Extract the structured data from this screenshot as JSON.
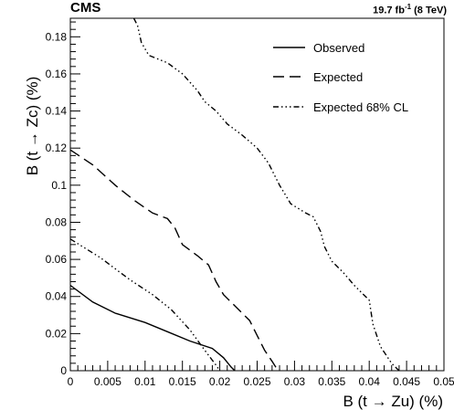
{
  "header": {
    "experiment": "CMS",
    "lumi_value": "19.7 fb",
    "lumi_exp": "-1",
    "energy": " (8 TeV)"
  },
  "chart_data": {
    "type": "line",
    "title": "",
    "xlabel": "B (t → Zu) (%)",
    "ylabel": "B (t → Zc) (%)",
    "xlim": [
      0,
      0.05
    ],
    "ylim": [
      0,
      0.19
    ],
    "xticks": [
      "0",
      "0.005",
      "0.01",
      "0.015",
      "0.02",
      "0.025",
      "0.03",
      "0.035",
      "0.04",
      "0.045",
      "0.05"
    ],
    "yticks": [
      "0",
      "0.02",
      "0.04",
      "0.06",
      "0.08",
      "0.1",
      "0.12",
      "0.14",
      "0.16",
      "0.18"
    ],
    "grid": false,
    "legend_position": "top-right",
    "series": [
      {
        "name": "Observed",
        "style": "solid",
        "points": [
          [
            0,
            0.046
          ],
          [
            0.003,
            0.037
          ],
          [
            0.006,
            0.031
          ],
          [
            0.01,
            0.026
          ],
          [
            0.013,
            0.021
          ],
          [
            0.016,
            0.016
          ],
          [
            0.019,
            0.012
          ],
          [
            0.0205,
            0.007
          ],
          [
            0.0215,
            0.002
          ],
          [
            0.022,
            0
          ]
        ]
      },
      {
        "name": "Expected",
        "style": "dashed",
        "points": [
          [
            0,
            0.119
          ],
          [
            0.003,
            0.111
          ],
          [
            0.006,
            0.1
          ],
          [
            0.0085,
            0.092
          ],
          [
            0.011,
            0.085
          ],
          [
            0.013,
            0.082
          ],
          [
            0.014,
            0.077
          ],
          [
            0.015,
            0.068
          ],
          [
            0.017,
            0.062
          ],
          [
            0.0185,
            0.057
          ],
          [
            0.0195,
            0.048
          ],
          [
            0.0205,
            0.041
          ],
          [
            0.022,
            0.035
          ],
          [
            0.024,
            0.027
          ],
          [
            0.025,
            0.019
          ],
          [
            0.026,
            0.011
          ],
          [
            0.027,
            0.005
          ],
          [
            0.0278,
            0
          ]
        ]
      },
      {
        "name": "Expected 68% CL",
        "style": "dashdot",
        "segments": [
          [
            [
              0,
              0.071
            ],
            [
              0.004,
              0.061
            ],
            [
              0.008,
              0.049
            ],
            [
              0.011,
              0.041
            ],
            [
              0.0135,
              0.033
            ],
            [
              0.016,
              0.022
            ],
            [
              0.018,
              0.011
            ],
            [
              0.0195,
              0.003
            ],
            [
              0.02,
              0
            ]
          ],
          [
            [
              0.0085,
              0.19
            ],
            [
              0.009,
              0.186
            ],
            [
              0.0095,
              0.177
            ],
            [
              0.0105,
              0.17
            ],
            [
              0.013,
              0.166
            ],
            [
              0.015,
              0.16
            ],
            [
              0.017,
              0.151
            ],
            [
              0.018,
              0.145
            ],
            [
              0.0195,
              0.14
            ],
            [
              0.021,
              0.133
            ],
            [
              0.023,
              0.127
            ],
            [
              0.025,
              0.12
            ],
            [
              0.0265,
              0.112
            ],
            [
              0.028,
              0.1
            ],
            [
              0.0295,
              0.09
            ],
            [
              0.0315,
              0.085
            ],
            [
              0.0325,
              0.083
            ],
            [
              0.0335,
              0.075
            ],
            [
              0.034,
              0.067
            ],
            [
              0.035,
              0.059
            ],
            [
              0.0365,
              0.053
            ],
            [
              0.038,
              0.046
            ],
            [
              0.039,
              0.042
            ],
            [
              0.04,
              0.038
            ],
            [
              0.0403,
              0.03
            ],
            [
              0.0405,
              0.025
            ],
            [
              0.0415,
              0.013
            ],
            [
              0.043,
              0.004
            ],
            [
              0.044,
              0
            ]
          ]
        ]
      }
    ]
  }
}
